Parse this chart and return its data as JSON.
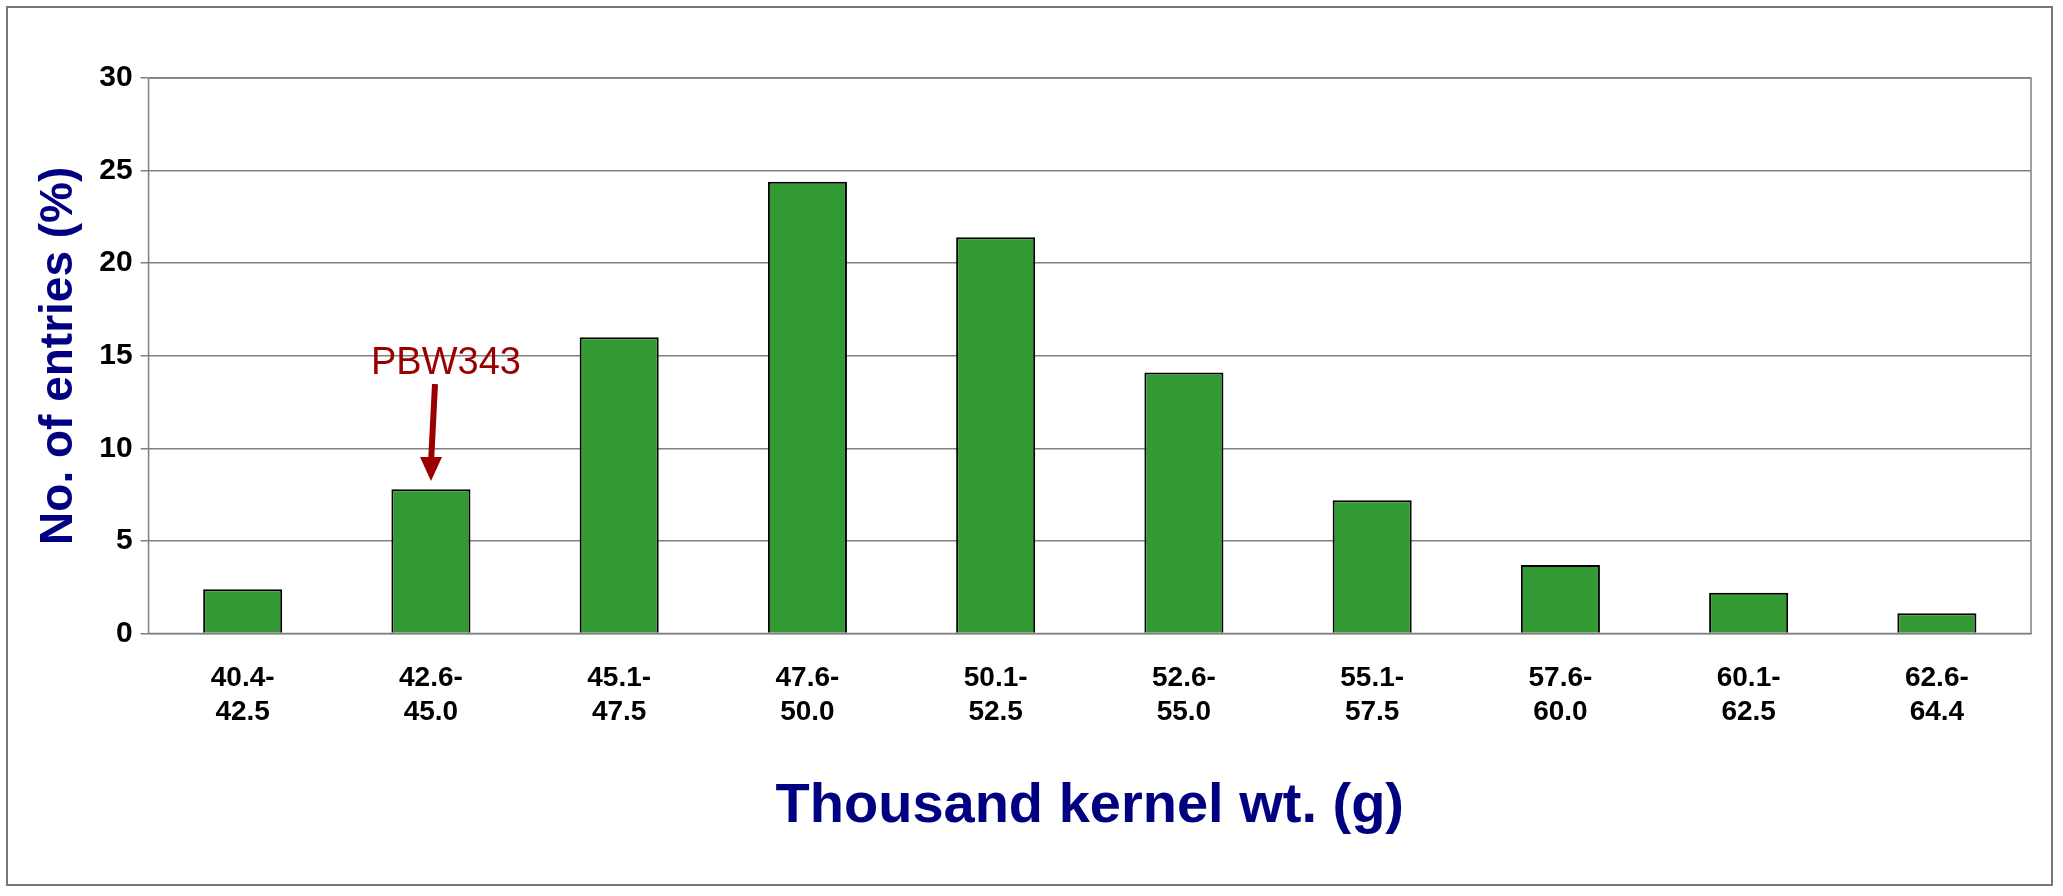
{
  "chart_data": {
    "type": "bar",
    "xlabel": "Thousand kernel wt. (g)",
    "ylabel": "No. of entries (%)",
    "categories": [
      "40.4-42.5",
      "42.6-45.0",
      "45.1-47.5",
      "47.6-50.0",
      "50.1-52.5",
      "52.6-55.0",
      "55.1-57.5",
      "57.6-60.0",
      "60.1-62.5",
      "62.6-64.4"
    ],
    "values": [
      2.4,
      7.8,
      16.0,
      24.4,
      21.4,
      14.1,
      7.2,
      3.7,
      2.2,
      1.1
    ],
    "color": "#339933",
    "ylim": [
      0,
      30
    ],
    "yticks": [
      0,
      5,
      10,
      15,
      20,
      25,
      30
    ],
    "grid": "y",
    "legend": false,
    "annotations": [
      {
        "text": "PBW343",
        "x": "42.6-45.0",
        "y": 7.8
      }
    ]
  }
}
